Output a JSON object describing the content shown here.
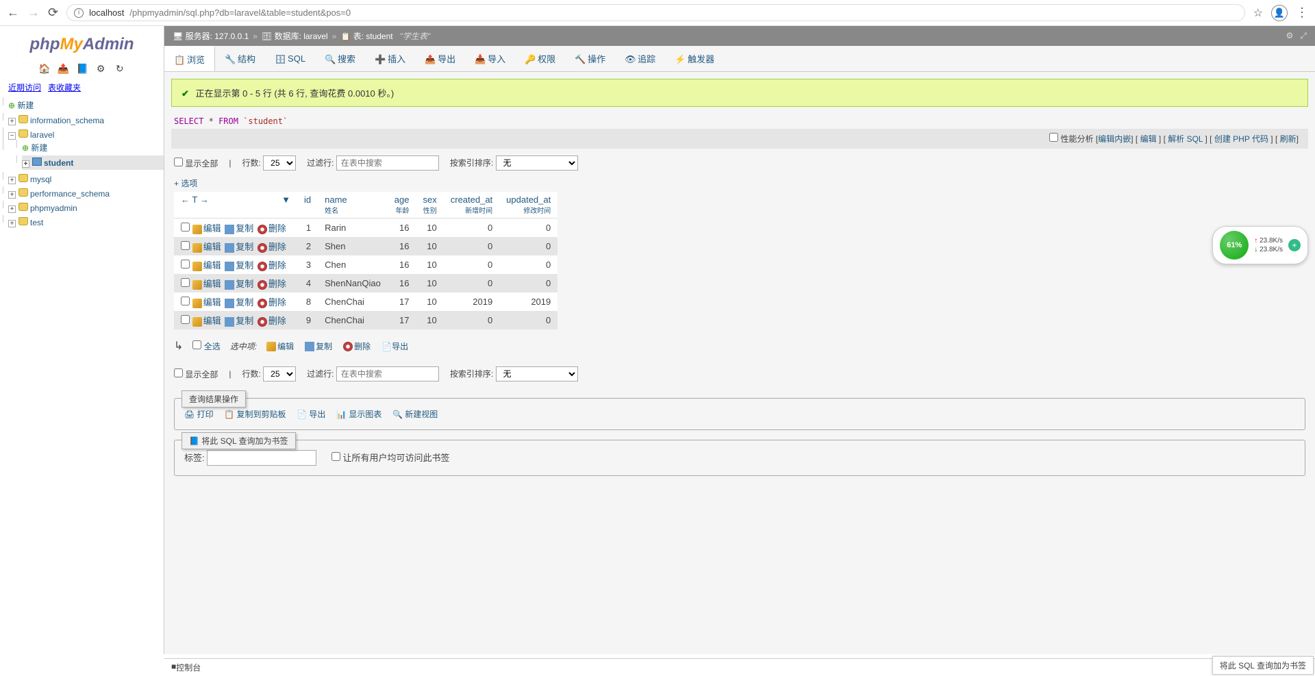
{
  "browser": {
    "url_prefix": "localhost",
    "url_path": "/phpmyadmin/sql.php?db=laravel&table=student&pos=0"
  },
  "logo": {
    "php": "php",
    "my": "My",
    "admin": "Admin"
  },
  "recent": {
    "recent": "近期访问",
    "favorites": "表收藏夹"
  },
  "tree": {
    "new": "新建",
    "dbs": [
      {
        "name": "information_schema",
        "expanded": false
      },
      {
        "name": "laravel",
        "expanded": true,
        "children": [
          {
            "name": "新建",
            "new": true
          },
          {
            "name": "student",
            "selected": true
          }
        ]
      },
      {
        "name": "mysql",
        "expanded": false
      },
      {
        "name": "performance_schema",
        "expanded": false
      },
      {
        "name": "phpmyadmin",
        "expanded": false
      },
      {
        "name": "test",
        "expanded": false
      }
    ]
  },
  "breadcrumb": {
    "server_label": "服务器: 127.0.0.1",
    "db_label": "数据库: laravel",
    "table_label": "表: student",
    "comment": "\"学生表\""
  },
  "tabs": [
    {
      "label": "浏览",
      "active": true
    },
    {
      "label": "结构"
    },
    {
      "label": "SQL"
    },
    {
      "label": "搜索"
    },
    {
      "label": "插入"
    },
    {
      "label": "导出"
    },
    {
      "label": "导入"
    },
    {
      "label": "权限"
    },
    {
      "label": "操作"
    },
    {
      "label": "追踪"
    },
    {
      "label": "触发器"
    }
  ],
  "success": "正在显示第 0 - 5 行 (共 6 行, 查询花费 0.0010 秒。)",
  "query": {
    "select": "SELECT",
    "star": "*",
    "from": "FROM",
    "tbl": "`student`"
  },
  "action_links": {
    "profiling": "性能分析",
    "inline": "编辑内嵌",
    "edit": "编辑",
    "explain": "解析 SQL",
    "php": "创建 PHP 代码",
    "refresh": "刷新"
  },
  "controls": {
    "show_all": "显示全部",
    "rows": "行数:",
    "rows_val": "25",
    "filter": "过滤行:",
    "filter_ph": "在表中搜索",
    "sort": "按索引排序:",
    "sort_val": "无",
    "options": "+ 选项"
  },
  "columns": [
    {
      "key": "id",
      "label": "id",
      "sub": "",
      "align": "right"
    },
    {
      "key": "name",
      "label": "name",
      "sub": "姓名",
      "align": "left"
    },
    {
      "key": "age",
      "label": "age",
      "sub": "年龄",
      "align": "right"
    },
    {
      "key": "sex",
      "label": "sex",
      "sub": "性别",
      "align": "right"
    },
    {
      "key": "created_at",
      "label": "created_at",
      "sub": "新增时间",
      "align": "right"
    },
    {
      "key": "updated_at",
      "label": "updated_at",
      "sub": "修改时间",
      "align": "right"
    }
  ],
  "row_actions": {
    "edit": "编辑",
    "copy": "复制",
    "delete": "删除"
  },
  "rows": [
    {
      "id": "1",
      "name": "Rarin",
      "age": "16",
      "sex": "10",
      "created_at": "0",
      "updated_at": "0"
    },
    {
      "id": "2",
      "name": "Shen",
      "age": "16",
      "sex": "10",
      "created_at": "0",
      "updated_at": "0"
    },
    {
      "id": "3",
      "name": "Chen",
      "age": "16",
      "sex": "10",
      "created_at": "0",
      "updated_at": "0"
    },
    {
      "id": "4",
      "name": "ShenNanQiao",
      "age": "16",
      "sex": "10",
      "created_at": "0",
      "updated_at": "0"
    },
    {
      "id": "8",
      "name": "ChenChai",
      "age": "17",
      "sex": "10",
      "created_at": "2019",
      "updated_at": "2019"
    },
    {
      "id": "9",
      "name": "ChenChai",
      "age": "17",
      "sex": "10",
      "created_at": "0",
      "updated_at": "0"
    }
  ],
  "bulk": {
    "select_all": "全选",
    "with": "选中项:",
    "edit": "编辑",
    "copy": "复制",
    "delete": "删除",
    "export": "导出"
  },
  "results_ops": {
    "legend": "查询结果操作",
    "print": "打印",
    "clipboard": "复制到剪贴板",
    "export": "导出",
    "chart": "显示图表",
    "view": "新建视图"
  },
  "bookmark": {
    "legend": "将此 SQL 查询加为书签",
    "label": "标签:",
    "share": "让所有用户均可访问此书签"
  },
  "console": "控制台",
  "bookmark_float": "将此 SQL 查询加为书签",
  "net": {
    "percent": "61%",
    "up": "23.8K/s",
    "down": "23.8K/s"
  }
}
